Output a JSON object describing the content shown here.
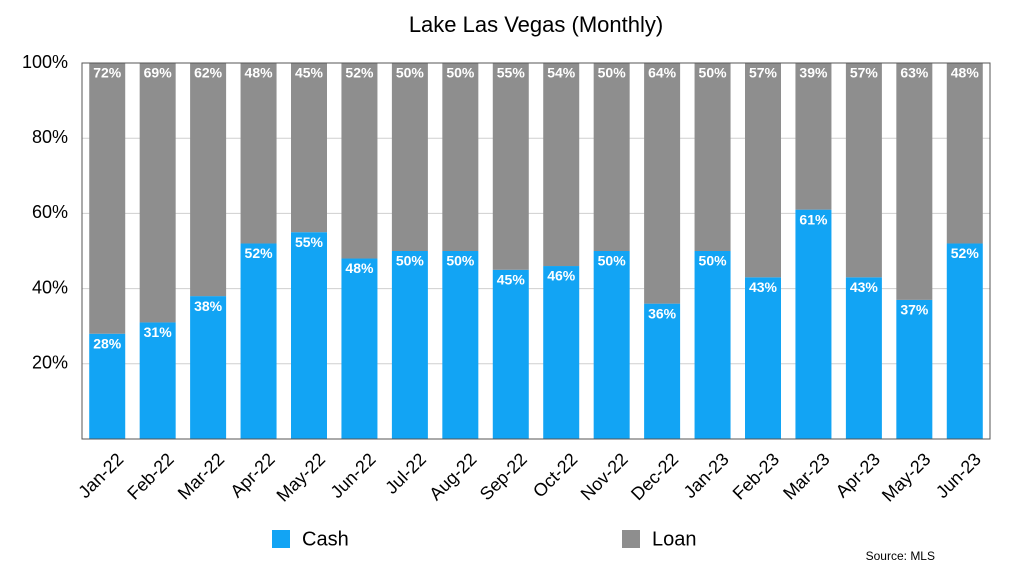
{
  "chart_data": {
    "type": "stacked_bar",
    "title": "Lake Las Vegas (Monthly)",
    "categories": [
      "Jan-22",
      "Feb-22",
      "Mar-22",
      "Apr-22",
      "May-22",
      "Jun-22",
      "Jul-22",
      "Aug-22",
      "Sep-22",
      "Oct-22",
      "Nov-22",
      "Dec-22",
      "Jan-23",
      "Feb-23",
      "Mar-23",
      "Apr-23",
      "May-23",
      "Jun-23"
    ],
    "series": [
      {
        "name": "Cash",
        "color": "#12a4f4",
        "values": [
          28,
          31,
          38,
          52,
          55,
          48,
          50,
          50,
          45,
          46,
          50,
          36,
          50,
          43,
          61,
          43,
          37,
          52
        ],
        "value_labels": [
          "28%",
          "31%",
          "38%",
          "52%",
          "55%",
          "48%",
          "50%",
          "50%",
          "45%",
          "46%",
          "50%",
          "36%",
          "50%",
          "43%",
          "61%",
          "43%",
          "37%",
          "52%"
        ]
      },
      {
        "name": "Loan",
        "color": "#8e8e8e",
        "values": [
          72,
          69,
          62,
          48,
          45,
          52,
          50,
          50,
          55,
          54,
          50,
          64,
          50,
          57,
          39,
          57,
          63,
          48
        ],
        "value_labels": [
          "72%",
          "69%",
          "62%",
          "48%",
          "45%",
          "52%",
          "50%",
          "50%",
          "55%",
          "54%",
          "50%",
          "64%",
          "50%",
          "57%",
          "39%",
          "57%",
          "63%",
          "48%"
        ]
      }
    ],
    "ylim": [
      0,
      100
    ],
    "yticks": [
      {
        "value": 20,
        "label": "20%"
      },
      {
        "value": 40,
        "label": "40%"
      },
      {
        "value": 60,
        "label": "60%"
      },
      {
        "value": 80,
        "label": "80%"
      },
      {
        "value": 100,
        "label": "100%"
      }
    ],
    "grid": true,
    "source": "Source: MLS"
  }
}
